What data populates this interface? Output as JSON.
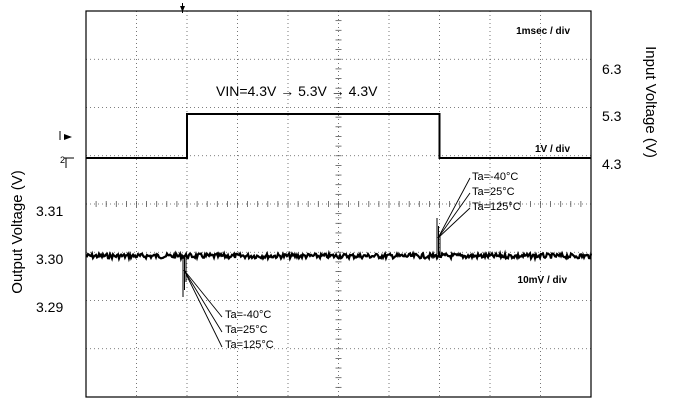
{
  "chart_data": {
    "type": "line",
    "time_scale": "1msec / div",
    "input": {
      "axis_title": "Input Voltage (V)",
      "ticks": [
        "6.3",
        "5.3",
        "4.3"
      ],
      "scale": "1V / div",
      "label": "VIN=4.3V → 5.3V → 4.3V",
      "x_ms": [
        0,
        2,
        2,
        7,
        7,
        10
      ],
      "y_v": [
        4.3,
        4.3,
        5.3,
        5.3,
        4.3,
        4.3
      ]
    },
    "output": {
      "axis_title": "Output Voltage (V)",
      "ticks": [
        "3.31",
        "3.30",
        "3.29"
      ],
      "scale": "10mV / div",
      "nominal_v": 3.3,
      "undershoot_at_ms": 2,
      "overshoot_at_ms": 7
    },
    "annotations": {
      "rise_group": [
        "Ta=-40°C",
        "Ta=25°C",
        "Ta=125°C"
      ],
      "fall_group": [
        "Ta=-40°C",
        "Ta=25°C",
        "Ta=125°C"
      ]
    },
    "grid": true
  }
}
